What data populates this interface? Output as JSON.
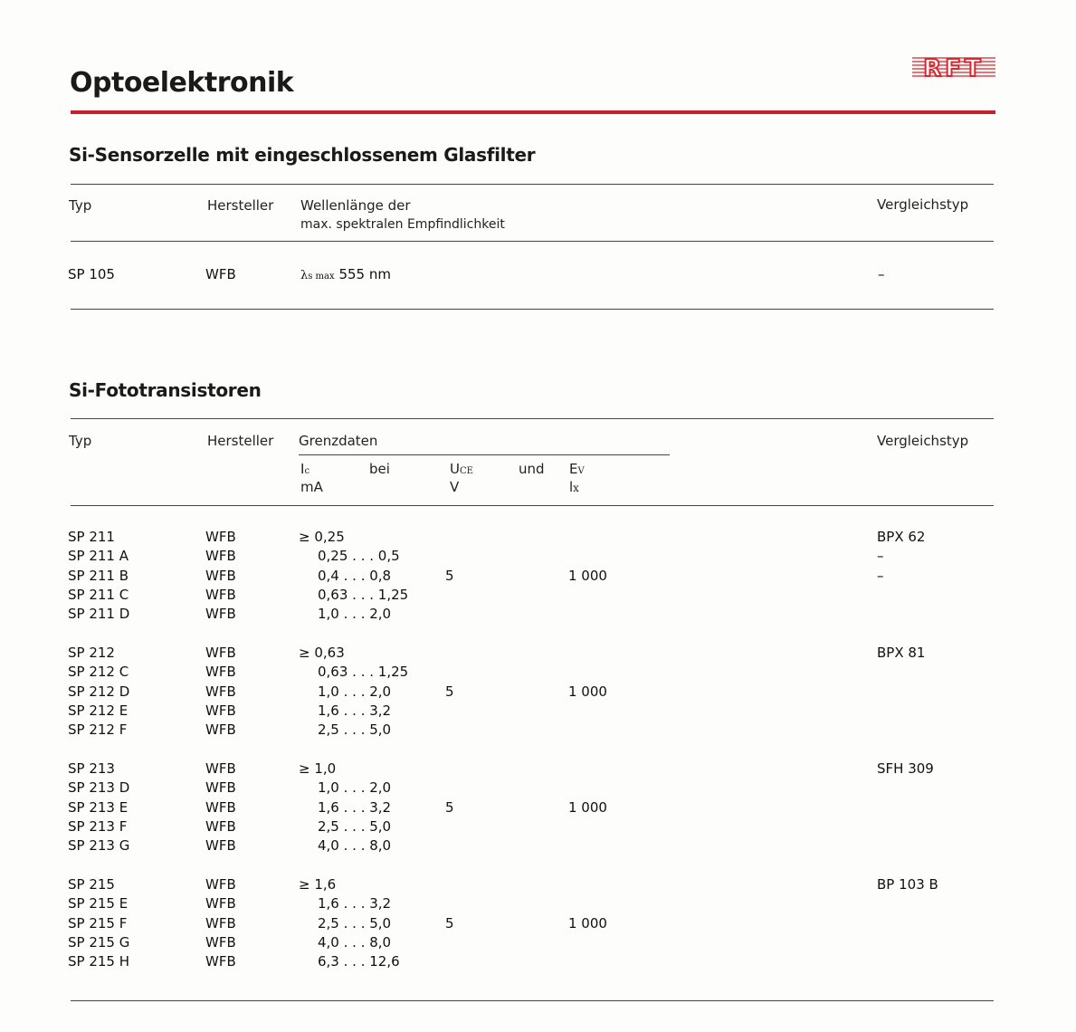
{
  "page_title": "Optoelektronik",
  "logo_text": "RFT",
  "colors": {
    "accent_red": "#c8202a",
    "text": "#1a1a1a"
  },
  "section1": {
    "title": "Si-Sensorzelle mit eingeschlossenem Glasfilter",
    "headers": {
      "typ": "Typ",
      "hersteller": "Hersteller",
      "wellen_line1": "Wellenlänge der",
      "wellen_line2": "max. spektralen Empfindlichkeit",
      "vergleich": "Vergleichstyp"
    },
    "row": {
      "typ": "SP 105",
      "hersteller": "WFB",
      "lambda_symbol": "λ",
      "lambda_sub": "s max",
      "value": "555 nm",
      "vergleich": "–"
    }
  },
  "section2": {
    "title": "Si-Fototransistoren",
    "headers": {
      "typ": "Typ",
      "hersteller": "Hersteller",
      "grenzdaten": "Grenzdaten",
      "ic": "I",
      "ic_sub": "c",
      "ic_unit": "mA",
      "bei": "bei",
      "uce": "U",
      "uce_sub": "CE",
      "uce_unit": "V",
      "und": "und",
      "ev": "E",
      "ev_sub": "V",
      "ev_unit": "l",
      "ev_unit_sub": "x",
      "vergleich": "Vergleichstyp"
    },
    "groups": [
      {
        "uce": "5",
        "ev": "1 000",
        "rows": [
          {
            "typ": "SP 211",
            "hersteller": "WFB",
            "ic": "≥ 0,25",
            "vergleich": "BPX 62"
          },
          {
            "typ": "SP 211 A",
            "hersteller": "WFB",
            "ic": "0,25 . . . 0,5",
            "vergleich": "–"
          },
          {
            "typ": "SP 211 B",
            "hersteller": "WFB",
            "ic": "0,4  . . . 0,8",
            "vergleich": "–"
          },
          {
            "typ": "SP 211 C",
            "hersteller": "WFB",
            "ic": "0,63 . . . 1,25",
            "vergleich": ""
          },
          {
            "typ": "SP 211 D",
            "hersteller": "WFB",
            "ic": "1,0  . . . 2,0",
            "vergleich": ""
          }
        ]
      },
      {
        "uce": "5",
        "ev": "1 000",
        "rows": [
          {
            "typ": "SP 212",
            "hersteller": "WFB",
            "ic": "≥ 0,63",
            "vergleich": "BPX 81"
          },
          {
            "typ": "SP 212 C",
            "hersteller": "WFB",
            "ic": "0,63 . . . 1,25",
            "vergleich": ""
          },
          {
            "typ": "SP 212 D",
            "hersteller": "WFB",
            "ic": "1,0  . . . 2,0",
            "vergleich": ""
          },
          {
            "typ": "SP 212 E",
            "hersteller": "WFB",
            "ic": "1,6  . . . 3,2",
            "vergleich": ""
          },
          {
            "typ": "SP 212 F",
            "hersteller": "WFB",
            "ic": "2,5  . . . 5,0",
            "vergleich": ""
          }
        ]
      },
      {
        "uce": "5",
        "ev": "1 000",
        "rows": [
          {
            "typ": "SP 213",
            "hersteller": "WFB",
            "ic": "≥ 1,0",
            "vergleich": "SFH 309"
          },
          {
            "typ": "SP 213 D",
            "hersteller": "WFB",
            "ic": "1,0  . . . 2,0",
            "vergleich": ""
          },
          {
            "typ": "SP 213 E",
            "hersteller": "WFB",
            "ic": "1,6  . . . 3,2",
            "vergleich": ""
          },
          {
            "typ": "SP 213 F",
            "hersteller": "WFB",
            "ic": "2,5  . . . 5,0",
            "vergleich": ""
          },
          {
            "typ": "SP 213 G",
            "hersteller": "WFB",
            "ic": "4,0  . . . 8,0",
            "vergleich": ""
          }
        ]
      },
      {
        "uce": "5",
        "ev": "1 000",
        "rows": [
          {
            "typ": "SP 215",
            "hersteller": "WFB",
            "ic": "≥ 1,6",
            "vergleich": "BP 103 B"
          },
          {
            "typ": "SP 215 E",
            "hersteller": "WFB",
            "ic": "1,6  . . . 3,2",
            "vergleich": ""
          },
          {
            "typ": "SP 215 F",
            "hersteller": "WFB",
            "ic": "2,5  . . . 5,0",
            "vergleich": ""
          },
          {
            "typ": "SP 215 G",
            "hersteller": "WFB",
            "ic": "4,0  . . . 8,0",
            "vergleich": ""
          },
          {
            "typ": "SP 215 H",
            "hersteller": "WFB",
            "ic": "6,3  . . . 12,6",
            "vergleich": ""
          }
        ]
      }
    ]
  }
}
